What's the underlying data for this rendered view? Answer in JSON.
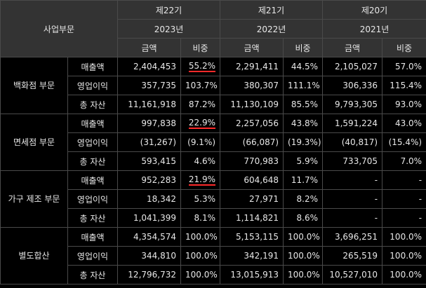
{
  "header": {
    "business_segment": "사업부문",
    "periods": [
      {
        "term": "제22기",
        "year": "2023년"
      },
      {
        "term": "제21기",
        "year": "2022년"
      },
      {
        "term": "제20기",
        "year": "2021년"
      }
    ],
    "amount": "금액",
    "ratio": "비중"
  },
  "segments": [
    {
      "name": "백화점 부문",
      "rows": [
        {
          "label": "매출액",
          "v1": "2,404,453",
          "r1": "55.2%",
          "v2": "2,291,411",
          "r2": "44.5%",
          "v3": "2,105,027",
          "r3": "57.0%"
        },
        {
          "label": "영업이익",
          "v1": "357,735",
          "r1": "103.7%",
          "v2": "380,307",
          "r2": "111.1%",
          "v3": "306,336",
          "r3": "115.4%"
        },
        {
          "label": "총 자산",
          "v1": "11,161,918",
          "r1": "87.2%",
          "v2": "11,130,109",
          "r2": "85.5%",
          "v3": "9,793,305",
          "r3": "93.0%"
        }
      ]
    },
    {
      "name": "면세점 부문",
      "rows": [
        {
          "label": "매출액",
          "v1": "997,838",
          "r1": "22.9%",
          "v2": "2,257,056",
          "r2": "43.8%",
          "v3": "1,591,224",
          "r3": "43.0%"
        },
        {
          "label": "영업이익",
          "v1": "(31,267)",
          "r1": "(9.1%)",
          "v2": "(66,087)",
          "r2": "(19.3%)",
          "v3": "(40,817)",
          "r3": "(15.4%)"
        },
        {
          "label": "총 자산",
          "v1": "593,415",
          "r1": "4.6%",
          "v2": "770,983",
          "r2": "5.9%",
          "v3": "733,705",
          "r3": "7.0%"
        }
      ]
    },
    {
      "name": "가구 제조 부문",
      "rows": [
        {
          "label": "매출액",
          "v1": "952,283",
          "r1": "21.9%",
          "v2": "604,648",
          "r2": "11.7%",
          "v3": "-",
          "r3": "-"
        },
        {
          "label": "영업이익",
          "v1": "18,342",
          "r1": "5.3%",
          "v2": "27,971",
          "r2": "8.2%",
          "v3": "-",
          "r3": "-"
        },
        {
          "label": "총 자산",
          "v1": "1,041,399",
          "r1": "8.1%",
          "v2": "1,114,821",
          "r2": "8.6%",
          "v3": "-",
          "r3": "-"
        }
      ]
    },
    {
      "name": "별도합산",
      "rows": [
        {
          "label": "매출액",
          "v1": "4,354,574",
          "r1": "100.0%",
          "v2": "5,153,115",
          "r2": "100.0%",
          "v3": "3,696,251",
          "r3": "100.0%"
        },
        {
          "label": "영업이익",
          "v1": "344,810",
          "r1": "100.0%",
          "v2": "342,191",
          "r2": "100.0%",
          "v3": "265,519",
          "r3": "100.0%"
        },
        {
          "label": "총 자산",
          "v1": "12,796,732",
          "r1": "100.0%",
          "v2": "13,015,913",
          "r2": "100.0%",
          "v3": "10,527,010",
          "r3": "100.0%"
        }
      ]
    }
  ],
  "highlight_color": "#ff2a2a"
}
